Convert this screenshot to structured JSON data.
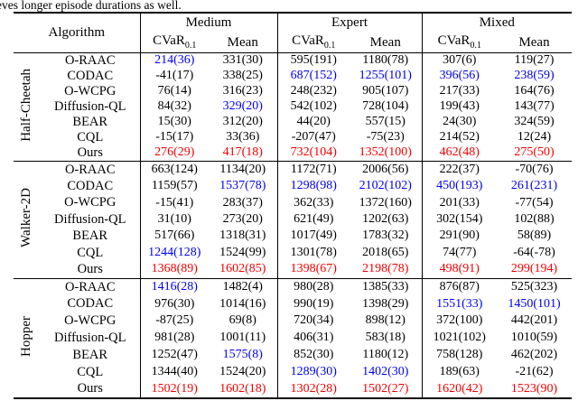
{
  "intro_text": "eves longer episode durations as well.",
  "table": {
    "algorithm_header": "Algorithm",
    "groups": [
      "Medium",
      "Expert",
      "Mixed"
    ],
    "metric_main": "CVaR",
    "metric_sub": "0.1",
    "metric_mean": "Mean",
    "colors": {
      "black": "#000000",
      "blue": "#0000f2",
      "red": "#f40000"
    },
    "sections": [
      {
        "env": "Half-Cheetah",
        "rows": [
          {
            "algorithm": "O-RAAC",
            "cells": [
              [
                "214(36)",
                "blue"
              ],
              [
                "331(30)",
                "black"
              ],
              [
                "595(191)",
                "black"
              ],
              [
                "1180(78)",
                "black"
              ],
              [
                "307(6)",
                "black"
              ],
              [
                "119(27)",
                "black"
              ]
            ]
          },
          {
            "algorithm": "CODAC",
            "cells": [
              [
                "-41(17)",
                "black"
              ],
              [
                "338(25)",
                "black"
              ],
              [
                "687(152)",
                "blue"
              ],
              [
                "1255(101)",
                "blue"
              ],
              [
                "396(56)",
                "blue"
              ],
              [
                "238(59)",
                "blue"
              ]
            ]
          },
          {
            "algorithm": "O-WCPG",
            "cells": [
              [
                "76(14)",
                "black"
              ],
              [
                "316(23)",
                "black"
              ],
              [
                "248(232)",
                "black"
              ],
              [
                "905(107)",
                "black"
              ],
              [
                "217(33)",
                "black"
              ],
              [
                "164(76)",
                "black"
              ]
            ]
          },
          {
            "algorithm": "Diffusion-QL",
            "cells": [
              [
                "84(32)",
                "black"
              ],
              [
                "329(20)",
                "blue"
              ],
              [
                "542(102)",
                "black"
              ],
              [
                "728(104)",
                "black"
              ],
              [
                "199(43)",
                "black"
              ],
              [
                "143(77)",
                "black"
              ]
            ]
          },
          {
            "algorithm": "BEAR",
            "cells": [
              [
                "15(30)",
                "black"
              ],
              [
                "312(20)",
                "black"
              ],
              [
                "44(20)",
                "black"
              ],
              [
                "557(15)",
                "black"
              ],
              [
                "24(30)",
                "black"
              ],
              [
                "324(59)",
                "black"
              ]
            ]
          },
          {
            "algorithm": "CQL",
            "cells": [
              [
                "-15(17)",
                "black"
              ],
              [
                "33(36)",
                "black"
              ],
              [
                "-207(47)",
                "black"
              ],
              [
                "-75(23)",
                "black"
              ],
              [
                "214(52)",
                "black"
              ],
              [
                "12(24)",
                "black"
              ]
            ]
          },
          {
            "algorithm": "Ours",
            "cells": [
              [
                "276(29)",
                "red"
              ],
              [
                "417(18)",
                "red"
              ],
              [
                "732(104)",
                "red"
              ],
              [
                "1352(100)",
                "red"
              ],
              [
                "462(48)",
                "red"
              ],
              [
                "275(50)",
                "red"
              ]
            ]
          }
        ]
      },
      {
        "env": "Walker-2D",
        "rows": [
          {
            "algorithm": "O-RAAC",
            "cells": [
              [
                "663(124)",
                "black"
              ],
              [
                "1134(20)",
                "black"
              ],
              [
                "1172(71)",
                "black"
              ],
              [
                "2006(56)",
                "black"
              ],
              [
                "222(37)",
                "black"
              ],
              [
                "-70(76)",
                "black"
              ]
            ]
          },
          {
            "algorithm": "CODAC",
            "cells": [
              [
                "1159(57)",
                "black"
              ],
              [
                "1537(78)",
                "blue"
              ],
              [
                "1298(98)",
                "blue"
              ],
              [
                "2102(102)",
                "blue"
              ],
              [
                "450(193)",
                "blue"
              ],
              [
                "261(231)",
                "blue"
              ]
            ]
          },
          {
            "algorithm": "O-WCPG",
            "cells": [
              [
                "-15(41)",
                "black"
              ],
              [
                "283(37)",
                "black"
              ],
              [
                "362(33)",
                "black"
              ],
              [
                "1372(160)",
                "black"
              ],
              [
                "201(33)",
                "black"
              ],
              [
                "-77(54)",
                "black"
              ]
            ]
          },
          {
            "algorithm": "Diffusion-QL",
            "cells": [
              [
                "31(10)",
                "black"
              ],
              [
                "273(20)",
                "black"
              ],
              [
                "621(49)",
                "black"
              ],
              [
                "1202(63)",
                "black"
              ],
              [
                "302(154)",
                "black"
              ],
              [
                "102(88)",
                "black"
              ]
            ]
          },
          {
            "algorithm": "BEAR",
            "cells": [
              [
                "517(66)",
                "black"
              ],
              [
                "1318(31)",
                "black"
              ],
              [
                "1017(49)",
                "black"
              ],
              [
                "1783(32)",
                "black"
              ],
              [
                "291(90)",
                "black"
              ],
              [
                "58(89)",
                "black"
              ]
            ]
          },
          {
            "algorithm": "CQL",
            "cells": [
              [
                "1244(128)",
                "blue"
              ],
              [
                "1524(99)",
                "black"
              ],
              [
                "1301(78)",
                "black"
              ],
              [
                "2018(65)",
                "black"
              ],
              [
                "74(77)",
                "black"
              ],
              [
                "-64(-78)",
                "black"
              ]
            ]
          },
          {
            "algorithm": "Ours",
            "cells": [
              [
                "1368(89)",
                "red"
              ],
              [
                "1602(85)",
                "red"
              ],
              [
                "1398(67)",
                "red"
              ],
              [
                "2198(78)",
                "red"
              ],
              [
                "498(91)",
                "red"
              ],
              [
                "299(194)",
                "red"
              ]
            ]
          }
        ]
      },
      {
        "env": "Hopper",
        "rows": [
          {
            "algorithm": "O-RAAC",
            "cells": [
              [
                "1416(28)",
                "blue"
              ],
              [
                "1482(4)",
                "black"
              ],
              [
                "980(28)",
                "black"
              ],
              [
                "1385(33)",
                "black"
              ],
              [
                "876(87)",
                "black"
              ],
              [
                "525(323)",
                "black"
              ]
            ]
          },
          {
            "algorithm": "CODAC",
            "cells": [
              [
                "976(30)",
                "black"
              ],
              [
                "1014(16)",
                "black"
              ],
              [
                "990(19)",
                "black"
              ],
              [
                "1398(29)",
                "black"
              ],
              [
                "1551(33)",
                "blue"
              ],
              [
                "1450(101)",
                "blue"
              ]
            ]
          },
          {
            "algorithm": "O-WCPG",
            "cells": [
              [
                "-87(25)",
                "black"
              ],
              [
                "69(8)",
                "black"
              ],
              [
                "720(34)",
                "black"
              ],
              [
                "898(12)",
                "black"
              ],
              [
                "372(100)",
                "black"
              ],
              [
                "442(201)",
                "black"
              ]
            ]
          },
          {
            "algorithm": "Diffusion-QL",
            "cells": [
              [
                "981(28)",
                "black"
              ],
              [
                "1001(11)",
                "black"
              ],
              [
                "406(31)",
                "black"
              ],
              [
                "583(18)",
                "black"
              ],
              [
                "1021(102)",
                "black"
              ],
              [
                "1010(59)",
                "black"
              ]
            ]
          },
          {
            "algorithm": "BEAR",
            "cells": [
              [
                "1252(47)",
                "black"
              ],
              [
                "1575(8)",
                "blue"
              ],
              [
                "852(30)",
                "black"
              ],
              [
                "1180(12)",
                "black"
              ],
              [
                "758(128)",
                "black"
              ],
              [
                "462(202)",
                "black"
              ]
            ]
          },
          {
            "algorithm": "CQL",
            "cells": [
              [
                "1344(40)",
                "black"
              ],
              [
                "1524(20)",
                "black"
              ],
              [
                "1289(30)",
                "blue"
              ],
              [
                "1402(30)",
                "blue"
              ],
              [
                "189(63)",
                "black"
              ],
              [
                "-21(62)",
                "black"
              ]
            ]
          },
          {
            "algorithm": "Ours",
            "cells": [
              [
                "1502(19)",
                "red"
              ],
              [
                "1602(18)",
                "red"
              ],
              [
                "1302(28)",
                "red"
              ],
              [
                "1502(27)",
                "red"
              ],
              [
                "1620(42)",
                "red"
              ],
              [
                "1523(90)",
                "red"
              ]
            ]
          }
        ]
      }
    ]
  }
}
